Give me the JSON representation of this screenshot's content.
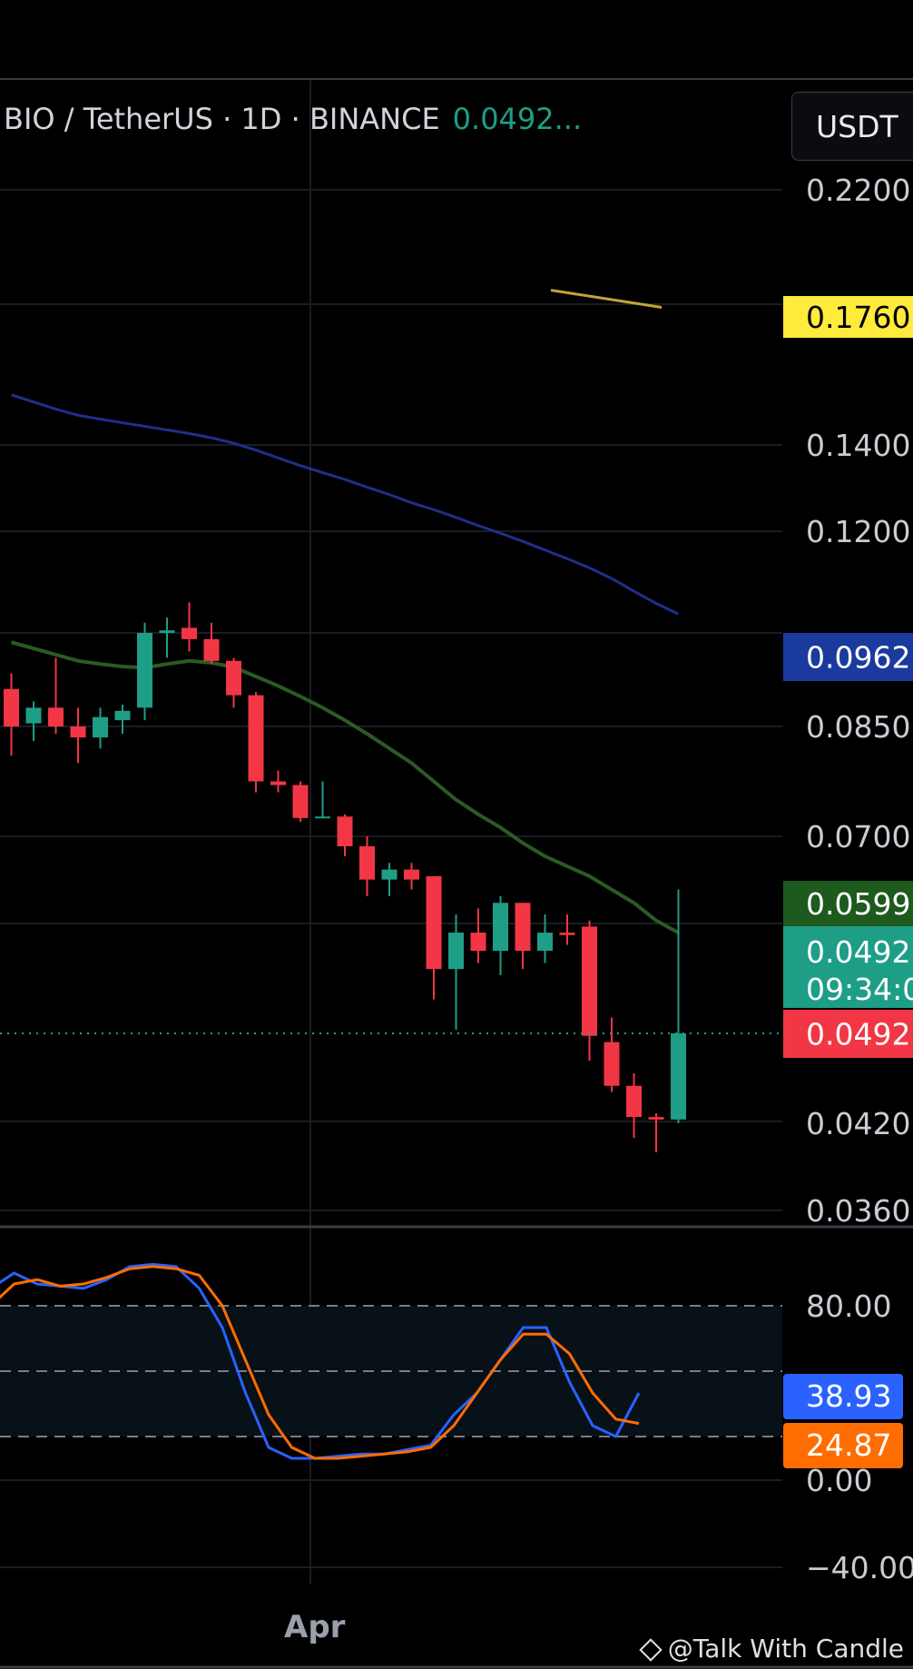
{
  "header": {
    "symbol_text": "BIO / TetherUS · 1D · BINANCE",
    "last_price_text": "0.0492...",
    "currency_button": "USDT"
  },
  "watermark": "@Talk With Candle",
  "colors": {
    "up": "#1e9e86",
    "down": "#f23645",
    "ma_blue": "#1f2f8a",
    "ma_green": "#2b5a24",
    "ma_gold": "#c9a13b",
    "stoch_k": "#2962ff",
    "stoch_d": "#ff6d00"
  },
  "chart_data": [
    {
      "type": "candlestick",
      "title": "BIO / TetherUS · 1D · BINANCE",
      "y_ticks": [
        "0.2200",
        "0.1400",
        "0.1200",
        "0.0850",
        "0.0700",
        "0.0420",
        "0.0360"
      ],
      "x_ticks": [
        "Apr"
      ],
      "price_labels": [
        {
          "text": "0.1760",
          "bg": "#ffeb3b",
          "fg": "#000000"
        },
        {
          "text": "0.0962",
          "bg": "#1a3a9e",
          "fg": "#ffffff"
        },
        {
          "text": "0.0599",
          "bg": "#1e5a1e",
          "fg": "#ffffff"
        },
        {
          "text": "0.0492",
          "text2": "09:34:0",
          "bg": "#1e9e86",
          "fg": "#ffffff"
        },
        {
          "text": "0.0492",
          "bg": "#f23645",
          "fg": "#ffffff"
        }
      ],
      "candles": [
        {
          "o": 0.091,
          "h": 0.0935,
          "l": 0.081,
          "c": 0.085
        },
        {
          "o": 0.0855,
          "h": 0.089,
          "l": 0.083,
          "c": 0.088
        },
        {
          "o": 0.088,
          "h": 0.096,
          "l": 0.084,
          "c": 0.085
        },
        {
          "o": 0.085,
          "h": 0.088,
          "l": 0.08,
          "c": 0.0835
        },
        {
          "o": 0.0835,
          "h": 0.088,
          "l": 0.082,
          "c": 0.0865
        },
        {
          "o": 0.086,
          "h": 0.0885,
          "l": 0.084,
          "c": 0.0875
        },
        {
          "o": 0.088,
          "h": 0.102,
          "l": 0.086,
          "c": 0.1
        },
        {
          "o": 0.1,
          "h": 0.103,
          "l": 0.096,
          "c": 0.1005
        },
        {
          "o": 0.101,
          "h": 0.106,
          "l": 0.097,
          "c": 0.099
        },
        {
          "o": 0.099,
          "h": 0.102,
          "l": 0.095,
          "c": 0.0955
        },
        {
          "o": 0.0955,
          "h": 0.096,
          "l": 0.088,
          "c": 0.09
        },
        {
          "o": 0.09,
          "h": 0.0905,
          "l": 0.076,
          "c": 0.0775
        },
        {
          "o": 0.0775,
          "h": 0.079,
          "l": 0.076,
          "c": 0.077
        },
        {
          "o": 0.077,
          "h": 0.0775,
          "l": 0.072,
          "c": 0.0725
        },
        {
          "o": 0.0725,
          "h": 0.0775,
          "l": 0.0725,
          "c": 0.0727
        },
        {
          "o": 0.0727,
          "h": 0.073,
          "l": 0.067,
          "c": 0.0685
        },
        {
          "o": 0.0685,
          "h": 0.07,
          "l": 0.061,
          "c": 0.0635
        },
        {
          "o": 0.0635,
          "h": 0.066,
          "l": 0.061,
          "c": 0.065
        },
        {
          "o": 0.065,
          "h": 0.066,
          "l": 0.062,
          "c": 0.0635
        },
        {
          "o": 0.064,
          "h": 0.064,
          "l": 0.052,
          "c": 0.0545
        },
        {
          "o": 0.0545,
          "h": 0.059,
          "l": 0.0495,
          "c": 0.0575
        },
        {
          "o": 0.0575,
          "h": 0.0595,
          "l": 0.055,
          "c": 0.056
        },
        {
          "o": 0.056,
          "h": 0.061,
          "l": 0.054,
          "c": 0.06
        },
        {
          "o": 0.06,
          "h": 0.06,
          "l": 0.0545,
          "c": 0.056
        },
        {
          "o": 0.056,
          "h": 0.059,
          "l": 0.055,
          "c": 0.0575
        },
        {
          "o": 0.0575,
          "h": 0.059,
          "l": 0.0565,
          "c": 0.0573
        },
        {
          "o": 0.058,
          "h": 0.0585,
          "l": 0.047,
          "c": 0.049
        },
        {
          "o": 0.0485,
          "h": 0.0505,
          "l": 0.0445,
          "c": 0.045
        },
        {
          "o": 0.045,
          "h": 0.046,
          "l": 0.041,
          "c": 0.0425
        },
        {
          "o": 0.0425,
          "h": 0.0428,
          "l": 0.04,
          "c": 0.0423
        },
        {
          "o": 0.0423,
          "h": 0.062,
          "l": 0.042,
          "c": 0.0492
        }
      ],
      "ma_lines": [
        {
          "color_key": "ma_blue",
          "values": [
            0.154,
            0.152,
            0.15,
            0.1483,
            0.1472,
            0.1462,
            0.1452,
            0.1442,
            0.1432,
            0.142,
            0.1405,
            0.1388,
            0.137,
            0.1352,
            0.1336,
            0.132,
            0.1302,
            0.1285,
            0.1266,
            0.125,
            0.1232,
            0.1213,
            0.1196,
            0.118,
            0.1163,
            0.1146,
            0.1128,
            0.1107,
            0.1082,
            0.1058,
            0.1037
          ]
        },
        {
          "color_key": "ma_green",
          "values": [
            0.0985,
            0.0975,
            0.0965,
            0.0955,
            0.095,
            0.0946,
            0.0944,
            0.095,
            0.0955,
            0.0952,
            0.0945,
            0.093,
            0.0915,
            0.0898,
            0.088,
            0.086,
            0.084,
            0.082,
            0.08,
            0.0775,
            0.075,
            0.073,
            0.0712,
            0.069,
            0.067,
            0.0655,
            0.064,
            0.062,
            0.06,
            0.0585,
            0.0575
          ]
        },
        {
          "color_key": "ma_gold",
          "start_index": 25,
          "values": [
            0.185,
            0.179
          ]
        }
      ]
    },
    {
      "type": "line",
      "indicator": "stochastic",
      "y_ticks": [
        "80.00",
        "38.93",
        "24.87",
        "0.00",
        "−40.00"
      ],
      "bands": [
        80,
        50,
        20
      ],
      "ylim": [
        -40,
        110
      ],
      "series": [
        {
          "color_key": "stoch_k",
          "values": [
            88,
            95,
            90,
            89,
            88,
            92,
            98,
            99,
            98,
            88,
            70,
            40,
            15,
            10,
            10,
            11,
            12,
            12,
            14,
            16,
            30,
            40,
            55,
            70,
            70,
            45,
            25,
            20,
            40
          ]
        },
        {
          "color_key": "stoch_d",
          "values": [
            80,
            90,
            92,
            89,
            90,
            93,
            97,
            98,
            97,
            94,
            80,
            55,
            30,
            15,
            10,
            10,
            11,
            12,
            13,
            15,
            25,
            40,
            55,
            67,
            67,
            58,
            40,
            28,
            26
          ]
        }
      ]
    }
  ]
}
